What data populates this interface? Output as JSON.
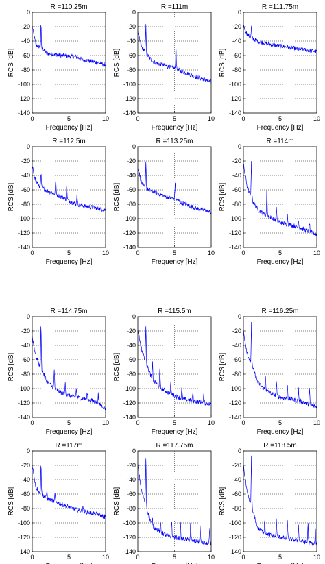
{
  "figure": {
    "background": "#ffffff",
    "line_color": "#0000ff",
    "grid": "dotted",
    "xlabel": "Frequency [Hz]",
    "ylabel": "RCS [dB]",
    "xlim": [
      0,
      10
    ],
    "ylim": [
      -140,
      0
    ],
    "xticks": [
      "0",
      "5",
      "10"
    ],
    "yticks": [
      "0",
      "-20",
      "-40",
      "-60",
      "-80",
      "-100",
      "-120",
      "-140"
    ]
  },
  "chart_data": [
    {
      "type": "line",
      "title": "R =110.25m",
      "xlabel": "Frequency [Hz]",
      "ylabel": "RCS [dB]",
      "xlim": [
        0,
        10
      ],
      "ylim": [
        -140,
        0
      ],
      "grid": true,
      "series": [
        {
          "x": [
            0,
            0.5,
            1,
            1.5,
            2,
            3,
            4,
            5,
            6,
            7,
            8,
            9,
            10
          ],
          "y": [
            -20,
            -45,
            -48,
            -52,
            -57,
            -58,
            -60,
            -61,
            -62,
            -66,
            -68,
            -70,
            -73
          ]
        }
      ],
      "peaks": [
        {
          "x": 1.2,
          "y": -18
        }
      ]
    },
    {
      "type": "line",
      "title": "R =111m",
      "xlabel": "Frequency [Hz]",
      "ylabel": "RCS [dB]",
      "xlim": [
        0,
        10
      ],
      "ylim": [
        -140,
        0
      ],
      "grid": true,
      "series": [
        {
          "x": [
            0,
            0.5,
            1,
            1.5,
            2,
            3,
            4,
            5,
            6,
            7,
            8,
            9,
            10
          ],
          "y": [
            -28,
            -48,
            -54,
            -62,
            -68,
            -72,
            -75,
            -78,
            -82,
            -86,
            -90,
            -93,
            -97
          ]
        }
      ],
      "peaks": [
        {
          "x": 1.1,
          "y": -18
        },
        {
          "x": 5.2,
          "y": -45
        }
      ]
    },
    {
      "type": "line",
      "title": "R =111.75m",
      "xlabel": "Frequency [Hz]",
      "ylabel": "RCS [dB]",
      "xlim": [
        0,
        10
      ],
      "ylim": [
        -140,
        0
      ],
      "grid": true,
      "series": [
        {
          "x": [
            0,
            0.5,
            1,
            1.5,
            2,
            3,
            4,
            5,
            6,
            7,
            8,
            9,
            10
          ],
          "y": [
            -18,
            -30,
            -35,
            -38,
            -40,
            -43,
            -45,
            -47,
            -48,
            -50,
            -52,
            -53,
            -55
          ]
        }
      ],
      "peaks": [
        {
          "x": 1.1,
          "y": -20
        }
      ]
    },
    {
      "type": "line",
      "title": "R =112.5m",
      "xlabel": "Frequency [Hz]",
      "ylabel": "RCS [dB]",
      "xlim": [
        0,
        10
      ],
      "ylim": [
        -140,
        0
      ],
      "grid": true,
      "series": [
        {
          "x": [
            0,
            0.5,
            1,
            1.5,
            2,
            3,
            4,
            5,
            6,
            7,
            8,
            9,
            10
          ],
          "y": [
            -28,
            -48,
            -55,
            -58,
            -61,
            -65,
            -70,
            -75,
            -80,
            -82,
            -84,
            -86,
            -88
          ]
        }
      ],
      "peaks": [
        {
          "x": 1.2,
          "y": -38
        },
        {
          "x": 3.2,
          "y": -45
        },
        {
          "x": 4.7,
          "y": -55
        },
        {
          "x": 6.1,
          "y": -65
        }
      ]
    },
    {
      "type": "line",
      "title": "R =113.25m",
      "xlabel": "Frequency [Hz]",
      "ylabel": "RCS [dB]",
      "xlim": [
        0,
        10
      ],
      "ylim": [
        -140,
        0
      ],
      "grid": true,
      "series": [
        {
          "x": [
            0,
            0.5,
            1,
            1.5,
            2,
            3,
            4,
            5,
            6,
            7,
            8,
            9,
            10
          ],
          "y": [
            -28,
            -50,
            -58,
            -60,
            -62,
            -66,
            -70,
            -72,
            -78,
            -82,
            -86,
            -88,
            -92
          ]
        }
      ],
      "peaks": [
        {
          "x": 1.1,
          "y": -20
        },
        {
          "x": 5.1,
          "y": -48
        }
      ]
    },
    {
      "type": "line",
      "title": "R =114m",
      "xlabel": "Frequency [Hz]",
      "ylabel": "RCS [dB]",
      "xlim": [
        0,
        10
      ],
      "ylim": [
        -140,
        0
      ],
      "grid": true,
      "series": [
        {
          "x": [
            0,
            0.5,
            1,
            1.5,
            2,
            3,
            4,
            5,
            6,
            7,
            8,
            9,
            10
          ],
          "y": [
            -25,
            -55,
            -70,
            -80,
            -88,
            -95,
            -100,
            -105,
            -108,
            -110,
            -114,
            -118,
            -122
          ]
        }
      ],
      "peaks": [
        {
          "x": 1.1,
          "y": -18
        },
        {
          "x": 3.2,
          "y": -60
        },
        {
          "x": 4.5,
          "y": -85
        },
        {
          "x": 6.0,
          "y": -95
        },
        {
          "x": 7.5,
          "y": -100
        },
        {
          "x": 9.0,
          "y": -105
        }
      ]
    },
    {
      "type": "line",
      "title": "R =114.75m",
      "xlabel": "Frequency [Hz]",
      "ylabel": "RCS [dB]",
      "xlim": [
        0,
        10
      ],
      "ylim": [
        -140,
        0
      ],
      "grid": true,
      "series": [
        {
          "x": [
            0,
            0.5,
            1,
            1.5,
            2,
            3,
            4,
            5,
            6,
            7,
            8,
            9,
            10
          ],
          "y": [
            -28,
            -55,
            -68,
            -78,
            -90,
            -100,
            -106,
            -110,
            -112,
            -114,
            -116,
            -120,
            -128
          ]
        }
      ],
      "peaks": [
        {
          "x": 1.2,
          "y": -10
        },
        {
          "x": 3.0,
          "y": -75
        },
        {
          "x": 4.5,
          "y": -90
        },
        {
          "x": 6.0,
          "y": -100
        },
        {
          "x": 7.5,
          "y": -105
        },
        {
          "x": 9.0,
          "y": -108
        }
      ]
    },
    {
      "type": "line",
      "title": "R =115.5m",
      "xlabel": "Frequency [Hz]",
      "ylabel": "RCS [dB]",
      "xlim": [
        0,
        10
      ],
      "ylim": [
        -140,
        0
      ],
      "grid": true,
      "series": [
        {
          "x": [
            0,
            0.5,
            1,
            1.5,
            2,
            3,
            4,
            5,
            6,
            7,
            8,
            9,
            10
          ],
          "y": [
            -18,
            -45,
            -60,
            -75,
            -88,
            -98,
            -105,
            -110,
            -114,
            -116,
            -118,
            -120,
            -122
          ]
        }
      ],
      "peaks": [
        {
          "x": 1.1,
          "y": -10
        },
        {
          "x": 2.0,
          "y": -65
        },
        {
          "x": 3.0,
          "y": -75
        },
        {
          "x": 4.5,
          "y": -92
        },
        {
          "x": 6.0,
          "y": -100
        },
        {
          "x": 7.5,
          "y": -105
        },
        {
          "x": 9.0,
          "y": -108
        }
      ]
    },
    {
      "type": "line",
      "title": "R =116.25m",
      "xlabel": "Frequency [Hz]",
      "ylabel": "RCS [dB]",
      "xlim": [
        0,
        10
      ],
      "ylim": [
        -140,
        0
      ],
      "grid": true,
      "series": [
        {
          "x": [
            0,
            0.5,
            1,
            1.5,
            2,
            3,
            4,
            5,
            6,
            7,
            8,
            9,
            10
          ],
          "y": [
            -20,
            -50,
            -65,
            -78,
            -92,
            -102,
            -108,
            -112,
            -114,
            -116,
            -118,
            -122,
            -126
          ]
        }
      ],
      "peaks": [
        {
          "x": 1.1,
          "y": -8
        },
        {
          "x": 3.0,
          "y": -80
        },
        {
          "x": 4.5,
          "y": -90
        },
        {
          "x": 6.0,
          "y": -95
        },
        {
          "x": 7.5,
          "y": -100
        },
        {
          "x": 9.0,
          "y": -100
        }
      ]
    },
    {
      "type": "line",
      "title": "R =117m",
      "xlabel": "Frequency [Hz]",
      "ylabel": "RCS [dB]",
      "xlim": [
        0,
        10
      ],
      "ylim": [
        -140,
        0
      ],
      "grid": true,
      "series": [
        {
          "x": [
            0,
            0.5,
            1,
            1.5,
            2,
            3,
            4,
            5,
            6,
            7,
            8,
            9,
            10
          ],
          "y": [
            -20,
            -50,
            -58,
            -62,
            -66,
            -70,
            -74,
            -78,
            -82,
            -84,
            -86,
            -88,
            -92
          ]
        }
      ],
      "peaks": [
        {
          "x": 1.2,
          "y": -15
        },
        {
          "x": 2.0,
          "y": -55
        },
        {
          "x": 3.1,
          "y": -60
        },
        {
          "x": 6.9,
          "y": -75
        }
      ]
    },
    {
      "type": "line",
      "title": "R =117.75m",
      "xlabel": "Frequency [Hz]",
      "ylabel": "RCS [dB]",
      "xlim": [
        0,
        10
      ],
      "ylim": [
        -140,
        0
      ],
      "grid": true,
      "series": [
        {
          "x": [
            0,
            0.5,
            1,
            1.5,
            2,
            3,
            4,
            5,
            6,
            7,
            8,
            9,
            10
          ],
          "y": [
            -20,
            -55,
            -72,
            -90,
            -105,
            -112,
            -118,
            -120,
            -122,
            -124,
            -126,
            -128,
            -130
          ]
        }
      ],
      "peaks": [
        {
          "x": 1.1,
          "y": -8
        },
        {
          "x": 2.0,
          "y": -95
        },
        {
          "x": 3.1,
          "y": -100
        },
        {
          "x": 4.6,
          "y": -95
        },
        {
          "x": 5.8,
          "y": -100
        },
        {
          "x": 7.2,
          "y": -100
        },
        {
          "x": 8.5,
          "y": -105
        },
        {
          "x": 9.8,
          "y": -108
        }
      ]
    },
    {
      "type": "line",
      "title": "R =118.5m",
      "xlabel": "Frequency [Hz]",
      "ylabel": "RCS [dB]",
      "xlim": [
        0,
        10
      ],
      "ylim": [
        -140,
        0
      ],
      "grid": true,
      "series": [
        {
          "x": [
            0,
            0.5,
            1,
            1.5,
            2,
            3,
            4,
            5,
            6,
            7,
            8,
            9,
            10
          ],
          "y": [
            -20,
            -58,
            -75,
            -92,
            -108,
            -114,
            -118,
            -120,
            -122,
            -124,
            -126,
            -128,
            -130
          ]
        }
      ],
      "peaks": [
        {
          "x": 1.1,
          "y": -5
        },
        {
          "x": 2.9,
          "y": -95
        },
        {
          "x": 4.5,
          "y": -95
        },
        {
          "x": 6.0,
          "y": -98
        },
        {
          "x": 7.5,
          "y": -100
        },
        {
          "x": 8.8,
          "y": -100
        },
        {
          "x": 9.8,
          "y": -108
        }
      ]
    }
  ]
}
